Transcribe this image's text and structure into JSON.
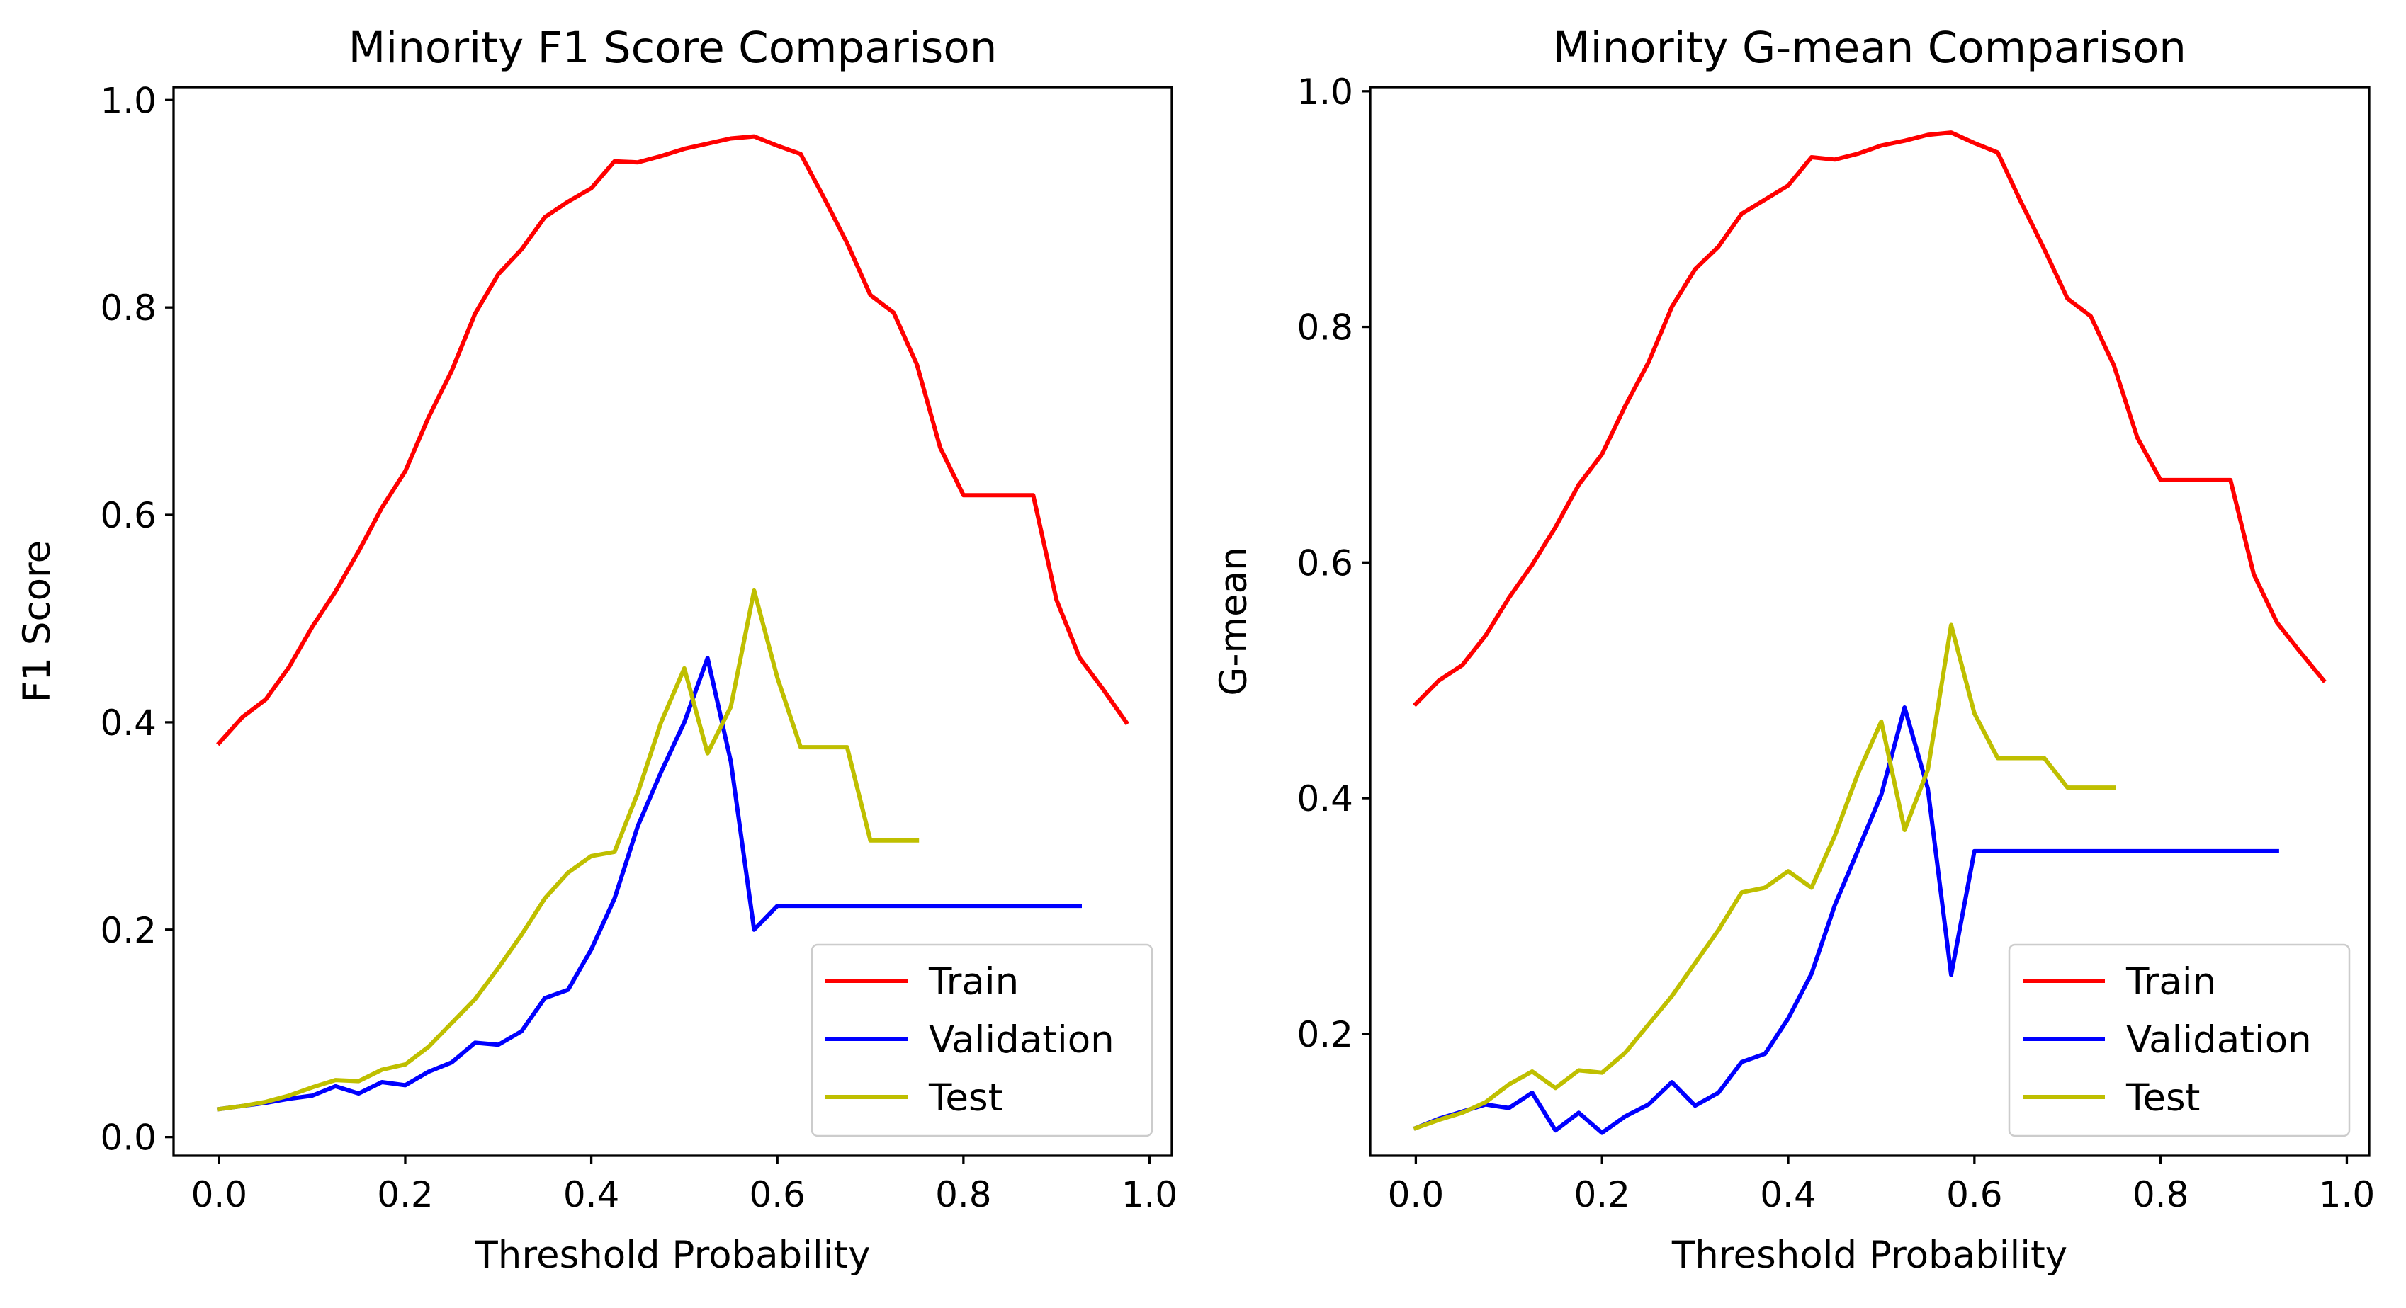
{
  "chart_data": [
    {
      "type": "line",
      "title": "Minority F1 Score Comparison",
      "xlabel": "Threshold Probability",
      "ylabel": "F1 Score",
      "xlim": [
        -0.049,
        1.024
      ],
      "ylim": [
        -0.018,
        1.0125
      ],
      "xticks": [
        0.0,
        0.2,
        0.4,
        0.6,
        0.8,
        1.0
      ],
      "xtick_labels": [
        "0.0",
        "0.2",
        "0.4",
        "0.6",
        "0.8",
        "1.0"
      ],
      "yticks": [
        0.0,
        0.2,
        0.4,
        0.6,
        0.8,
        1.0
      ],
      "ytick_labels": [
        "0.0",
        "0.2",
        "0.4",
        "0.6",
        "0.8",
        "1.0"
      ],
      "grid": false,
      "legend_position": "lower-right",
      "series": [
        {
          "name": "Train",
          "color": "#ff0000",
          "x": [
            0.0,
            0.025,
            0.05,
            0.075,
            0.1,
            0.125,
            0.15,
            0.175,
            0.2,
            0.225,
            0.25,
            0.275,
            0.3,
            0.325,
            0.35,
            0.375,
            0.4,
            0.425,
            0.45,
            0.475,
            0.5,
            0.525,
            0.55,
            0.575,
            0.6,
            0.625,
            0.65,
            0.675,
            0.7,
            0.725,
            0.75,
            0.775,
            0.8,
            0.825,
            0.85,
            0.875,
            0.9,
            0.925,
            0.95,
            0.975
          ],
          "y": [
            0.38,
            0.405,
            0.422,
            0.453,
            0.492,
            0.526,
            0.565,
            0.607,
            0.642,
            0.694,
            0.739,
            0.794,
            0.832,
            0.856,
            0.887,
            0.902,
            0.915,
            0.941,
            0.94,
            0.946,
            0.953,
            0.958,
            0.963,
            0.965,
            0.956,
            0.948,
            0.906,
            0.862,
            0.812,
            0.795,
            0.745,
            0.665,
            0.619,
            0.619,
            0.619,
            0.619,
            0.518,
            0.462,
            0.432,
            0.4
          ]
        },
        {
          "name": "Validation",
          "color": "#0000ff",
          "x": [
            0.0,
            0.025,
            0.05,
            0.075,
            0.1,
            0.125,
            0.15,
            0.175,
            0.2,
            0.225,
            0.25,
            0.275,
            0.3,
            0.325,
            0.35,
            0.375,
            0.4,
            0.425,
            0.45,
            0.475,
            0.5,
            0.525,
            0.55,
            0.575,
            0.6,
            0.625,
            0.65,
            0.675,
            0.7,
            0.725,
            0.75,
            0.775,
            0.8,
            0.825,
            0.85,
            0.875,
            0.9,
            0.925
          ],
          "y": [
            0.027,
            0.03,
            0.033,
            0.037,
            0.04,
            0.049,
            0.042,
            0.053,
            0.05,
            0.063,
            0.072,
            0.091,
            0.089,
            0.102,
            0.134,
            0.142,
            0.181,
            0.23,
            0.3,
            0.352,
            0.4,
            0.462,
            0.362,
            0.2,
            0.223,
            0.223,
            0.223,
            0.223,
            0.223,
            0.223,
            0.223,
            0.223,
            0.223,
            0.223,
            0.223,
            0.223,
            0.223,
            0.223
          ]
        },
        {
          "name": "Test",
          "color": "#bfbf00",
          "x": [
            0.0,
            0.025,
            0.05,
            0.075,
            0.1,
            0.125,
            0.15,
            0.175,
            0.2,
            0.225,
            0.25,
            0.275,
            0.3,
            0.325,
            0.35,
            0.375,
            0.4,
            0.425,
            0.45,
            0.475,
            0.5,
            0.525,
            0.55,
            0.575,
            0.6,
            0.625,
            0.65,
            0.675,
            0.7,
            0.725,
            0.75
          ],
          "y": [
            0.027,
            0.03,
            0.034,
            0.04,
            0.048,
            0.055,
            0.054,
            0.065,
            0.07,
            0.087,
            0.11,
            0.133,
            0.163,
            0.195,
            0.23,
            0.255,
            0.271,
            0.275,
            0.332,
            0.4,
            0.452,
            0.37,
            0.415,
            0.527,
            0.443,
            0.376,
            0.376,
            0.376,
            0.286,
            0.286,
            0.286
          ]
        }
      ]
    },
    {
      "type": "line",
      "title": "Minority G-mean Comparison",
      "xlabel": "Threshold Probability",
      "ylabel": "G-mean",
      "xlim": [
        -0.049,
        1.024
      ],
      "ylim": [
        0.0965,
        1.0035
      ],
      "xticks": [
        0.0,
        0.2,
        0.4,
        0.6,
        0.8,
        1.0
      ],
      "xtick_labels": [
        "0.0",
        "0.2",
        "0.4",
        "0.6",
        "0.8",
        "1.0"
      ],
      "yticks": [
        0.2,
        0.4,
        0.6,
        0.8,
        1.0
      ],
      "ytick_labels": [
        "0.2",
        "0.4",
        "0.6",
        "0.8",
        "1.0"
      ],
      "grid": false,
      "legend_position": "lower-right",
      "series": [
        {
          "name": "Train",
          "color": "#ff0000",
          "x": [
            0.0,
            0.025,
            0.05,
            0.075,
            0.1,
            0.125,
            0.15,
            0.175,
            0.2,
            0.225,
            0.25,
            0.275,
            0.3,
            0.325,
            0.35,
            0.375,
            0.4,
            0.425,
            0.45,
            0.475,
            0.5,
            0.525,
            0.55,
            0.575,
            0.6,
            0.625,
            0.65,
            0.675,
            0.7,
            0.725,
            0.75,
            0.775,
            0.8,
            0.825,
            0.85,
            0.875,
            0.9,
            0.925,
            0.95,
            0.975
          ],
          "y": [
            0.48,
            0.5,
            0.513,
            0.538,
            0.57,
            0.598,
            0.63,
            0.666,
            0.692,
            0.733,
            0.77,
            0.817,
            0.849,
            0.868,
            0.896,
            0.908,
            0.92,
            0.944,
            0.942,
            0.947,
            0.954,
            0.958,
            0.963,
            0.965,
            0.956,
            0.948,
            0.906,
            0.866,
            0.824,
            0.809,
            0.767,
            0.706,
            0.67,
            0.67,
            0.67,
            0.67,
            0.59,
            0.549,
            0.524,
            0.5
          ]
        },
        {
          "name": "Validation",
          "color": "#0000ff",
          "x": [
            0.0,
            0.025,
            0.05,
            0.075,
            0.1,
            0.125,
            0.15,
            0.175,
            0.2,
            0.225,
            0.25,
            0.275,
            0.3,
            0.325,
            0.35,
            0.375,
            0.4,
            0.425,
            0.45,
            0.475,
            0.5,
            0.525,
            0.55,
            0.575,
            0.6,
            0.625,
            0.65,
            0.675,
            0.7,
            0.725,
            0.75,
            0.775,
            0.8,
            0.825,
            0.85,
            0.875,
            0.9,
            0.925
          ],
          "y": [
            0.12,
            0.128,
            0.134,
            0.14,
            0.137,
            0.15,
            0.118,
            0.133,
            0.116,
            0.13,
            0.14,
            0.159,
            0.139,
            0.15,
            0.176,
            0.183,
            0.213,
            0.251,
            0.309,
            0.356,
            0.403,
            0.477,
            0.408,
            0.25,
            0.355,
            0.355,
            0.355,
            0.355,
            0.355,
            0.355,
            0.355,
            0.355,
            0.355,
            0.355,
            0.355,
            0.355,
            0.355,
            0.355
          ]
        },
        {
          "name": "Test",
          "color": "#bfbf00",
          "x": [
            0.0,
            0.025,
            0.05,
            0.075,
            0.1,
            0.125,
            0.15,
            0.175,
            0.2,
            0.225,
            0.25,
            0.275,
            0.3,
            0.325,
            0.35,
            0.375,
            0.4,
            0.425,
            0.45,
            0.475,
            0.5,
            0.525,
            0.55,
            0.575,
            0.6,
            0.625,
            0.65,
            0.675,
            0.7,
            0.725,
            0.75
          ],
          "y": [
            0.12,
            0.127,
            0.133,
            0.142,
            0.157,
            0.168,
            0.154,
            0.169,
            0.167,
            0.184,
            0.208,
            0.232,
            0.26,
            0.288,
            0.32,
            0.324,
            0.338,
            0.324,
            0.368,
            0.421,
            0.465,
            0.373,
            0.424,
            0.547,
            0.472,
            0.434,
            0.434,
            0.434,
            0.409,
            0.409,
            0.409
          ]
        }
      ]
    }
  ]
}
